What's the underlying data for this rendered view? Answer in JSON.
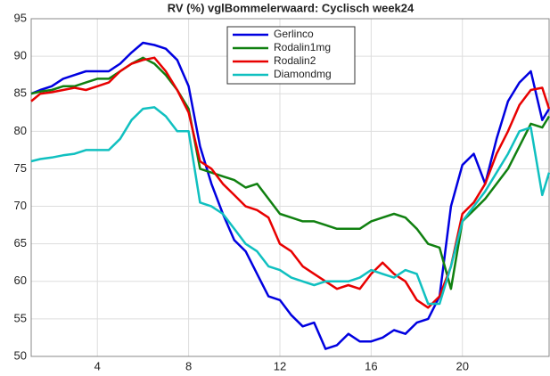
{
  "chart_data": {
    "type": "line",
    "title": "RV (%) vglBommelerwaard: Cyclisch week24",
    "x": [
      1.1,
      1.5,
      2,
      2.5,
      3,
      3.5,
      4,
      4.5,
      5,
      5.5,
      6,
      6.5,
      7,
      7.5,
      8,
      8.5,
      9,
      9.5,
      10,
      10.5,
      11,
      11.5,
      12,
      12.5,
      13,
      13.5,
      14,
      14.5,
      15,
      15.5,
      16,
      16.5,
      17,
      17.5,
      18,
      18.5,
      19,
      19.5,
      20,
      20.5,
      21,
      21.5,
      22,
      22.5,
      23,
      23.5,
      23.8
    ],
    "series": [
      {
        "name": "Gerlinco",
        "color": "#0000e0",
        "values": [
          85,
          85.5,
          86,
          87,
          87.5,
          88,
          88,
          88,
          89,
          90.5,
          91.8,
          91.5,
          91,
          89.5,
          86,
          78,
          73,
          69,
          65.5,
          64,
          61,
          58,
          57.5,
          55.5,
          54,
          54.5,
          51,
          51.5,
          53,
          52,
          52,
          52.5,
          53.5,
          53,
          54.5,
          55,
          58,
          70,
          75.5,
          77,
          73,
          79,
          84,
          86.5,
          88,
          81.5,
          83
        ]
      },
      {
        "name": "Rodalin1mg",
        "color": "#108010",
        "values": [
          85,
          85.3,
          85.5,
          86,
          86,
          86.5,
          87,
          87,
          88,
          89,
          89.8,
          89,
          87.5,
          85.5,
          83,
          75,
          74.5,
          74,
          73.5,
          72.5,
          73,
          71,
          69,
          68.5,
          68,
          68,
          67.5,
          67,
          67,
          67,
          68,
          68.5,
          69,
          68.5,
          67,
          65,
          64.5,
          59,
          68,
          69.5,
          71,
          73,
          75,
          78,
          81,
          80.5,
          82
        ]
      },
      {
        "name": "Rodalin2",
        "color": "#e80000",
        "values": [
          84,
          85,
          85.2,
          85.5,
          85.8,
          85.5,
          86,
          86.5,
          88,
          89,
          89.5,
          89.8,
          88,
          85.5,
          82.5,
          76,
          75,
          73,
          71.5,
          70,
          69.5,
          68.5,
          65,
          64,
          62,
          61,
          60,
          59,
          59.5,
          59,
          61,
          62.5,
          61,
          60,
          57.5,
          56.5,
          58,
          62,
          69,
          70.5,
          73,
          77,
          80,
          83.5,
          85.5,
          85.8,
          83
        ]
      },
      {
        "name": "Diamondmg",
        "color": "#10c0c0",
        "values": [
          76,
          76.3,
          76.5,
          76.8,
          77,
          77.5,
          77.5,
          77.5,
          79,
          81.5,
          83,
          83.2,
          82,
          80,
          80,
          70.5,
          70,
          69,
          67,
          65,
          64,
          62,
          61.5,
          60.5,
          60,
          59.5,
          60,
          60,
          60,
          60.5,
          61.5,
          61,
          60.5,
          61.5,
          61,
          57,
          57,
          62,
          68,
          70,
          72,
          74.5,
          77,
          80,
          80.5,
          71.5,
          74.5
        ]
      }
    ],
    "xlim": [
      1.1,
      23.8
    ],
    "xticks": [
      4,
      8,
      12,
      16,
      20
    ],
    "ylim": [
      50,
      95
    ],
    "yticks": [
      50,
      55,
      60,
      65,
      70,
      75,
      80,
      85,
      90,
      95
    ],
    "grid": true,
    "legend": "top"
  }
}
